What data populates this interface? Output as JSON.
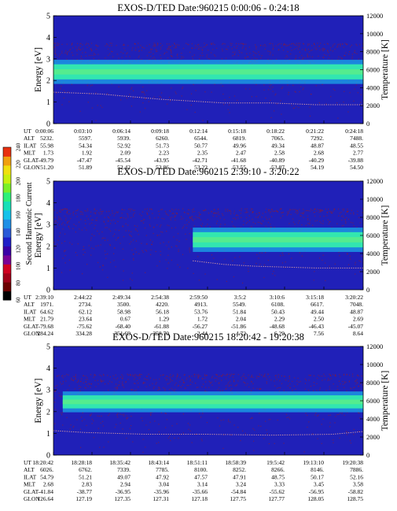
{
  "colorbar": {
    "label": "Second Harmonic Current",
    "ticks": [
      "60",
      "80",
      "100",
      "120",
      "140",
      "160",
      "180",
      "200",
      "220",
      "240"
    ],
    "colors": [
      "#000000",
      "#6b0000",
      "#a00018",
      "#d00020",
      "#7a0096",
      "#3a00a6",
      "#1f1fc8",
      "#2a5ad8",
      "#1f90e6",
      "#14c2ea",
      "#18e0b8",
      "#2ef07a",
      "#7af02a",
      "#c8f010",
      "#f0e010",
      "#f0a010",
      "#e83010"
    ]
  },
  "panel_colors": {
    "background": "#2020b8",
    "band_core": "#32e6b0",
    "band_edge": "#1aa8ea",
    "noise": "#a01c1c",
    "temperature_curve": "#e0a0a0"
  },
  "row_labels": [
    "UT",
    "ALT",
    "ILAT",
    "MLT",
    "GLAT",
    "GLON"
  ],
  "chart_data": [
    {
      "type": "heatmap",
      "title": "EXOS-D/TED   Date:960215  0:00:06 - 0:24:18",
      "ylabel": "Energy [eV]",
      "y2label": "Temperature [K]",
      "ylim": [
        0,
        5
      ],
      "y2lim": [
        0,
        12000
      ],
      "yticks": [
        "0",
        "1",
        "2",
        "3",
        "4",
        "5"
      ],
      "y2ticks": [
        "0",
        "2000",
        "4000",
        "6000",
        "8000",
        "10000",
        "12000"
      ],
      "band": {
        "center_eV": 2.4,
        "half_width_eV": 0.35,
        "start_fraction": 0.0
      },
      "temperature_K": [
        [
          0,
          3500
        ],
        [
          0.15,
          3300
        ],
        [
          0.25,
          3000
        ],
        [
          0.35,
          2700
        ],
        [
          0.45,
          2500
        ],
        [
          0.55,
          2300
        ],
        [
          0.7,
          2300
        ],
        [
          0.85,
          2100
        ],
        [
          1.0,
          2100
        ]
      ],
      "rows": [
        [
          "0:00:06",
          "0:03:10",
          "0:06:14",
          "0:09:18",
          "0:12:14",
          "0:15:18",
          "0:18:22",
          "0:21:22",
          "0:24:18"
        ],
        [
          "5232.",
          "5597.",
          "5939.",
          "6260.",
          "6544.",
          "6819.",
          "7065.",
          "7292.",
          "7488."
        ],
        [
          "55.98",
          "54.34",
          "52.92",
          "51.73",
          "50.77",
          "49.96",
          "49.34",
          "48.87",
          "48.55"
        ],
        [
          "1.73",
          "1.92",
          "2.09",
          "2.23",
          "2.35",
          "2.47",
          "2.58",
          "2.68",
          "2.77"
        ],
        [
          "-49.79",
          "-47.47",
          "-45.54",
          "-43.95",
          "-42.71",
          "-41.68",
          "-40.89",
          "-40.29",
          "-39.88"
        ],
        [
          "51.20",
          "51.89",
          "52.42",
          "52.86",
          "53.22",
          "53.55",
          "53.87",
          "54.19",
          "54.50"
        ]
      ]
    },
    {
      "type": "heatmap",
      "title": "EXOS-D/TED   Date:960215  2:39:10 - 3:20:22",
      "ylabel": "Energy [eV]",
      "y2label": "Temperature [K]",
      "ylim": [
        0,
        5
      ],
      "y2lim": [
        0,
        12000
      ],
      "yticks": [
        "0",
        "1",
        "2",
        "3",
        "4",
        "5"
      ],
      "y2ticks": [
        "0",
        "2000",
        "4000",
        "6000",
        "8000",
        "10000",
        "12000"
      ],
      "band": {
        "center_eV": 2.3,
        "half_width_eV": 0.35,
        "start_fraction": 0.45
      },
      "temperature_K": [
        [
          0.45,
          3200
        ],
        [
          0.55,
          2800
        ],
        [
          0.65,
          2600
        ],
        [
          0.75,
          2500
        ],
        [
          0.85,
          2400
        ],
        [
          1.0,
          2400
        ]
      ],
      "rows": [
        [
          "2:39:10",
          "2:44:22",
          "2:49:34",
          "2:54:38",
          "2:59:50",
          "3:5:2",
          "3:10:6",
          "3:15:18",
          "3:20:22"
        ],
        [
          "1971.",
          "2734.",
          "3500.",
          "4220.",
          "4913.",
          "5549.",
          "6108.",
          "6617.",
          "7048."
        ],
        [
          "64.62",
          "62.12",
          "58.98",
          "56.18",
          "53.76",
          "51.84",
          "50.43",
          "49.44",
          "48.87"
        ],
        [
          "21.79",
          "23.64",
          "0.67",
          "1.29",
          "1.72",
          "2.04",
          "2.29",
          "2.50",
          "2.69"
        ],
        [
          "-79.68",
          "-75.62",
          "-68.40",
          "-61.88",
          "-56.27",
          "-51.86",
          "-48.68",
          "-46.43",
          "-45.07"
        ],
        [
          "284.24",
          "334.28",
          "351.69",
          "358.70",
          "2.44",
          "4.72",
          "6.29",
          "7.56",
          "8.64"
        ]
      ]
    },
    {
      "type": "heatmap",
      "title": "EXOS-D/TED   Date:960215  18:20:42 - 19:20:38",
      "ylabel": "Energy [eV]",
      "y2label": "Temperature [K]",
      "ylim": [
        0,
        5
      ],
      "y2lim": [
        0,
        12000
      ],
      "yticks": [
        "0",
        "1",
        "2",
        "3",
        "4",
        "5"
      ],
      "y2ticks": [
        "0",
        "2000",
        "4000",
        "6000",
        "8000",
        "10000",
        "12000"
      ],
      "band": {
        "center_eV": 2.45,
        "half_width_eV": 0.3,
        "start_fraction": 0.03
      },
      "temperature_K": [
        [
          0,
          2700
        ],
        [
          0.1,
          2500
        ],
        [
          0.3,
          2300
        ],
        [
          0.5,
          2300
        ],
        [
          0.7,
          2200
        ],
        [
          0.9,
          2300
        ],
        [
          1.0,
          2600
        ]
      ],
      "rows": [
        [
          "18:20:42",
          "18:28:18",
          "18:35:42",
          "18:43:14",
          "18:51:11",
          "18:58:39",
          "19:5:42",
          "19:13:10",
          "19:20:38"
        ],
        [
          "6026.",
          "6762.",
          "7339.",
          "7785.",
          "8100.",
          "8252.",
          "8266.",
          "8146.",
          "7886."
        ],
        [
          "54.79",
          "51.21",
          "49.07",
          "47.92",
          "47.57",
          "47.91",
          "48.75",
          "50.17",
          "52.16"
        ],
        [
          "2.68",
          "2.83",
          "2.94",
          "3.04",
          "3.14",
          "3.24",
          "3.33",
          "3.45",
          "3.58"
        ],
        [
          "-41.84",
          "-38.77",
          "-36.95",
          "-35.96",
          "-35.66",
          "-54.84",
          "-55.62",
          "-56.95",
          "-58.82"
        ],
        [
          "126.64",
          "127.19",
          "127.35",
          "127.31",
          "127.18",
          "127.75",
          "127.77",
          "128.05",
          "128.75"
        ]
      ]
    }
  ]
}
